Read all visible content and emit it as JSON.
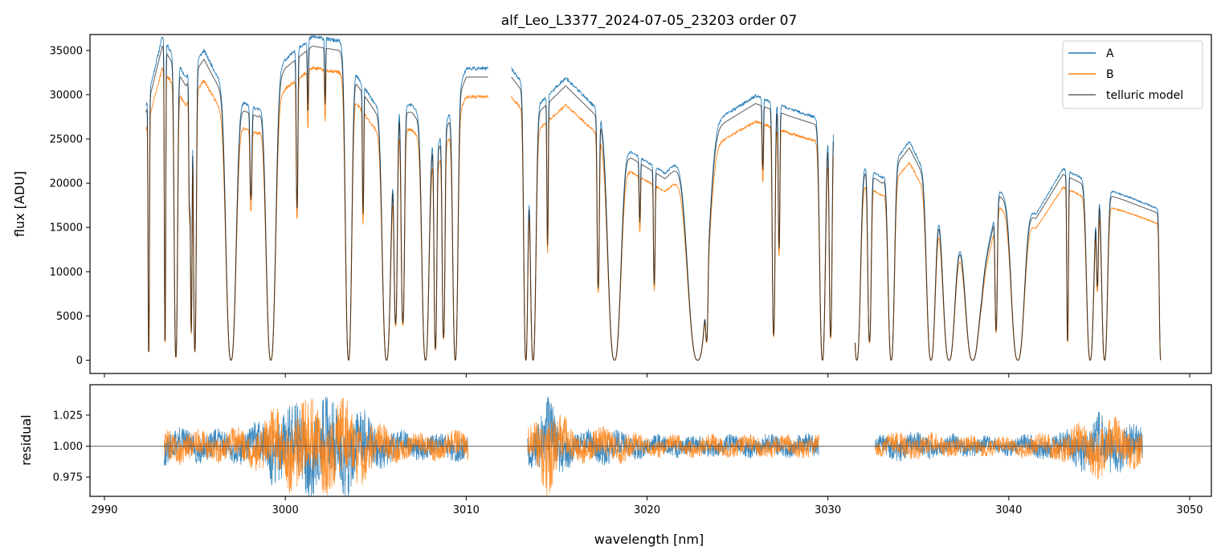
{
  "chart_data": [
    {
      "type": "line",
      "title": "alf_Leo_L3377_2024-07-05_23203  order 07",
      "xlabel": "",
      "ylabel": "flux [ADU]",
      "xlim": [
        2989.2,
        3051.2
      ],
      "ylim": [
        -1500,
        36800
      ],
      "yticks": [
        0,
        5000,
        10000,
        15000,
        20000,
        25000,
        30000,
        35000
      ],
      "ytick_labels": [
        "0",
        "5000",
        "10000",
        "15000",
        "20000",
        "25000",
        "30000",
        "35000"
      ],
      "xticks": [
        2990,
        3000,
        3010,
        3020,
        3030,
        3040,
        3050
      ],
      "legend": {
        "position": "top-right",
        "entries": [
          "A",
          "B",
          "telluric model"
        ]
      },
      "segments": [
        [
          2992.3,
          3011.2
        ],
        [
          3012.5,
          3030.3
        ],
        [
          3031.5,
          3048.4
        ]
      ],
      "continuum": [
        [
          2992.3,
          28000
        ],
        [
          2993.2,
          35500
        ],
        [
          2994.5,
          31000
        ],
        [
          2995.5,
          34000
        ],
        [
          2996.8,
          29000
        ],
        [
          2998.5,
          27500
        ],
        [
          3000.0,
          33000
        ],
        [
          3001.5,
          35500
        ],
        [
          3003.0,
          35000
        ],
        [
          3004.0,
          31000
        ],
        [
          3005.0,
          28000
        ],
        [
          3007.0,
          28000
        ],
        [
          3008.5,
          24000
        ],
        [
          3010.0,
          32000
        ],
        [
          3011.2,
          32000
        ],
        [
          3012.5,
          32000
        ],
        [
          3014.0,
          28000
        ],
        [
          3015.5,
          31000
        ],
        [
          3017.0,
          28000
        ],
        [
          3019.0,
          23000
        ],
        [
          3021.0,
          20500
        ],
        [
          3024.0,
          26500
        ],
        [
          3026.0,
          29000
        ],
        [
          3028.0,
          27500
        ],
        [
          3030.3,
          26000
        ],
        [
          3031.5,
          22000
        ],
        [
          3033.0,
          20000
        ],
        [
          3034.5,
          24000
        ],
        [
          3036.5,
          16000
        ],
        [
          3038.5,
          9000
        ],
        [
          3039.5,
          18500
        ],
        [
          3041.5,
          16000
        ],
        [
          3043.0,
          21000
        ],
        [
          3045.0,
          19000
        ],
        [
          3046.5,
          18000
        ],
        [
          3048.4,
          16500
        ]
      ],
      "absorption_lines": [
        [
          2992.45,
          0.98,
          0.05
        ],
        [
          2993.35,
          0.95,
          0.05
        ],
        [
          2993.95,
          0.99,
          0.12
        ],
        [
          2994.7,
          0.45,
          0.05
        ],
        [
          2994.8,
          0.9,
          0.06
        ],
        [
          2995.0,
          0.97,
          0.1
        ],
        [
          2997.0,
          1.0,
          0.35
        ],
        [
          2998.1,
          0.35,
          0.07
        ],
        [
          2999.2,
          1.0,
          0.33
        ],
        [
          3000.65,
          0.5,
          0.06
        ],
        [
          3001.25,
          0.2,
          0.04
        ],
        [
          3002.2,
          0.18,
          0.04
        ],
        [
          3003.5,
          1.0,
          0.22
        ],
        [
          3004.3,
          0.45,
          0.05
        ],
        [
          3005.6,
          1.0,
          0.3
        ],
        [
          3006.1,
          0.85,
          0.12
        ],
        [
          3006.5,
          0.85,
          0.12
        ],
        [
          3007.75,
          1.0,
          0.25
        ],
        [
          3008.3,
          0.95,
          0.1
        ],
        [
          3008.75,
          0.9,
          0.1
        ],
        [
          3009.4,
          1.0,
          0.18
        ],
        [
          3013.3,
          1.0,
          0.15
        ],
        [
          3014.5,
          0.55,
          0.05
        ],
        [
          3013.7,
          1.0,
          0.2
        ],
        [
          3017.3,
          0.7,
          0.08
        ],
        [
          3018.2,
          1.0,
          0.45
        ],
        [
          3019.6,
          0.3,
          0.05
        ],
        [
          3020.4,
          0.6,
          0.06
        ],
        [
          3022.8,
          1.0,
          0.7
        ],
        [
          3023.3,
          0.75,
          0.08
        ],
        [
          3026.4,
          0.25,
          0.05
        ],
        [
          3027.0,
          0.9,
          0.1
        ],
        [
          3027.3,
          0.55,
          0.06
        ],
        [
          3029.7,
          1.0,
          0.2
        ],
        [
          3030.15,
          0.9,
          0.1
        ],
        [
          3031.6,
          1.0,
          0.25
        ],
        [
          3032.3,
          0.9,
          0.12
        ],
        [
          3033.5,
          1.0,
          0.22
        ],
        [
          3035.7,
          1.0,
          0.3
        ],
        [
          3036.7,
          1.0,
          0.4
        ],
        [
          3038.0,
          1.0,
          0.45
        ],
        [
          3039.3,
          0.8,
          0.08
        ],
        [
          3040.5,
          1.0,
          0.45
        ],
        [
          3043.25,
          0.9,
          0.06
        ],
        [
          3044.5,
          1.0,
          0.25
        ],
        [
          3044.9,
          0.55,
          0.07
        ],
        [
          3045.3,
          1.0,
          0.2
        ],
        [
          3048.4,
          1.0,
          0.1
        ]
      ],
      "series": [
        {
          "name": "A",
          "color": "#1f77b4",
          "scale": 1.03,
          "noise": 0.006,
          "seed": 11
        },
        {
          "name": "B",
          "color": "#ff7f0e",
          "scale": 0.93,
          "noise": 0.006,
          "seed": 23
        },
        {
          "name": "telluric model",
          "color": "#000000",
          "opacity": 0.6,
          "scale": 1.0,
          "noise": 0.0,
          "seed": 0
        }
      ]
    },
    {
      "type": "line",
      "title": "",
      "xlabel": "wavelength [nm]",
      "ylabel": "residual",
      "xlim": [
        2989.2,
        3051.2
      ],
      "ylim": [
        0.9595,
        1.0495
      ],
      "yticks": [
        0.975,
        1.0,
        1.025
      ],
      "ytick_labels": [
        "0.975",
        "1.000",
        "1.025"
      ],
      "xticks": [
        2990,
        3000,
        3010,
        3020,
        3030,
        3040,
        3050
      ],
      "xtick_labels": [
        "2990",
        "3000",
        "3010",
        "3020",
        "3030",
        "3040",
        "3050"
      ],
      "reference_line": 1.0,
      "segments": [
        [
          2993.3,
          3010.1
        ],
        [
          3013.4,
          3029.5
        ],
        [
          3032.6,
          3047.4
        ]
      ],
      "noise_profile": [
        [
          2993.3,
          0.012
        ],
        [
          2996.0,
          0.01
        ],
        [
          2998.0,
          0.012
        ],
        [
          2999.5,
          0.025
        ],
        [
          3001.0,
          0.03
        ],
        [
          3003.5,
          0.03
        ],
        [
          3005.0,
          0.015
        ],
        [
          3007.0,
          0.008
        ],
        [
          3010.1,
          0.01
        ],
        [
          3013.4,
          0.01
        ],
        [
          3014.5,
          0.03
        ],
        [
          3016.0,
          0.01
        ],
        [
          3018.0,
          0.012
        ],
        [
          3020.0,
          0.007
        ],
        [
          3024.0,
          0.007
        ],
        [
          3029.5,
          0.008
        ],
        [
          3032.6,
          0.006
        ],
        [
          3034.0,
          0.01
        ],
        [
          3036.0,
          0.008
        ],
        [
          3040.0,
          0.006
        ],
        [
          3043.0,
          0.01
        ],
        [
          3045.0,
          0.02
        ],
        [
          3047.4,
          0.012
        ]
      ],
      "series": [
        {
          "name": "A",
          "color": "#1f77b4",
          "seed": 31
        },
        {
          "name": "B",
          "color": "#ff7f0e",
          "seed": 47
        }
      ]
    }
  ]
}
